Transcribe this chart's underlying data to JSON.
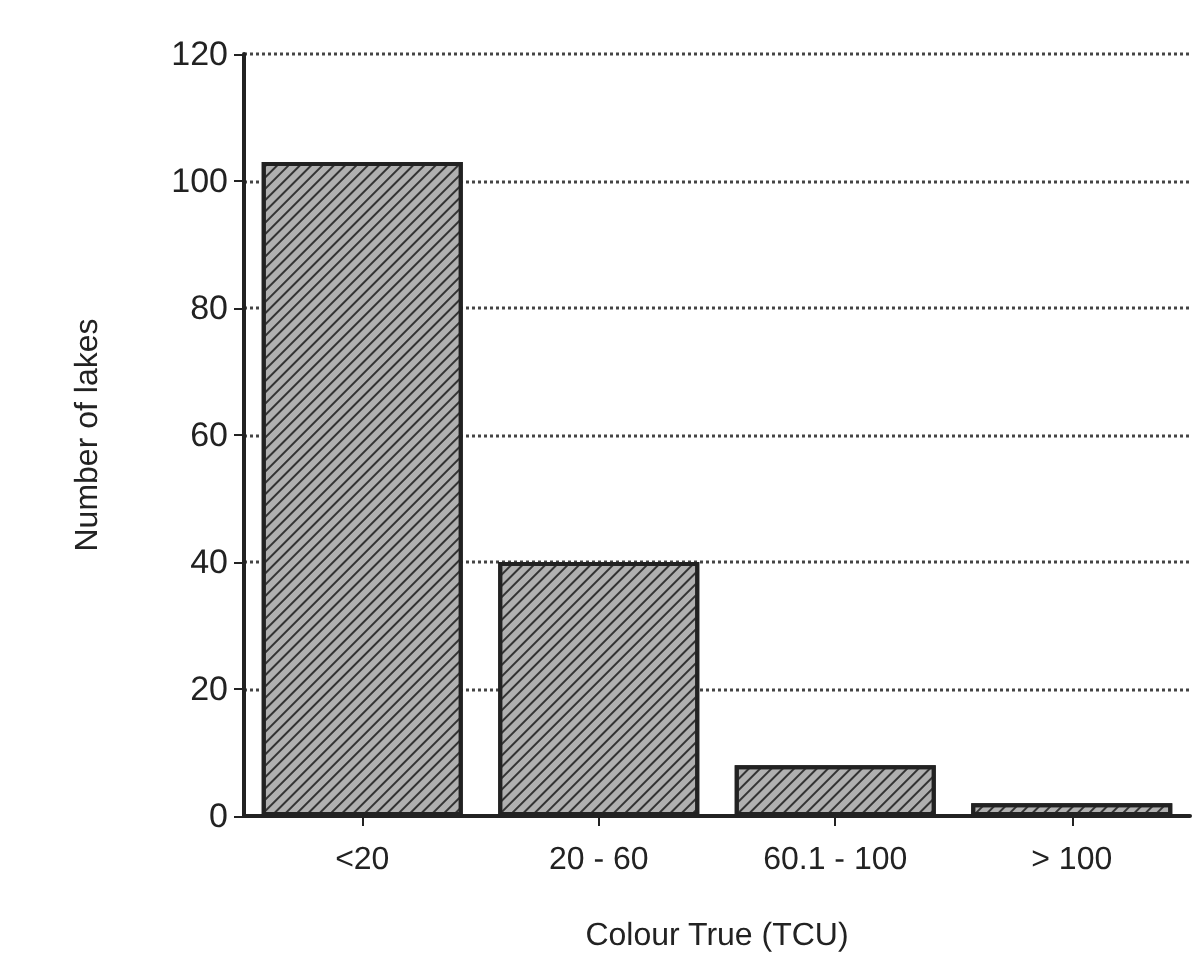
{
  "chart_data": {
    "type": "bar",
    "xlabel": "Colour True (TCU)",
    "ylabel": "Number of lakes",
    "categories": [
      "<20",
      "20 - 60",
      "60.1 - 100",
      "> 100"
    ],
    "values": [
      103,
      40,
      8,
      2
    ],
    "color": "#b0b0b0",
    "ylim": [
      0,
      120
    ],
    "yticks": [
      0,
      20,
      40,
      60,
      80,
      100,
      120
    ],
    "grid": "y"
  }
}
